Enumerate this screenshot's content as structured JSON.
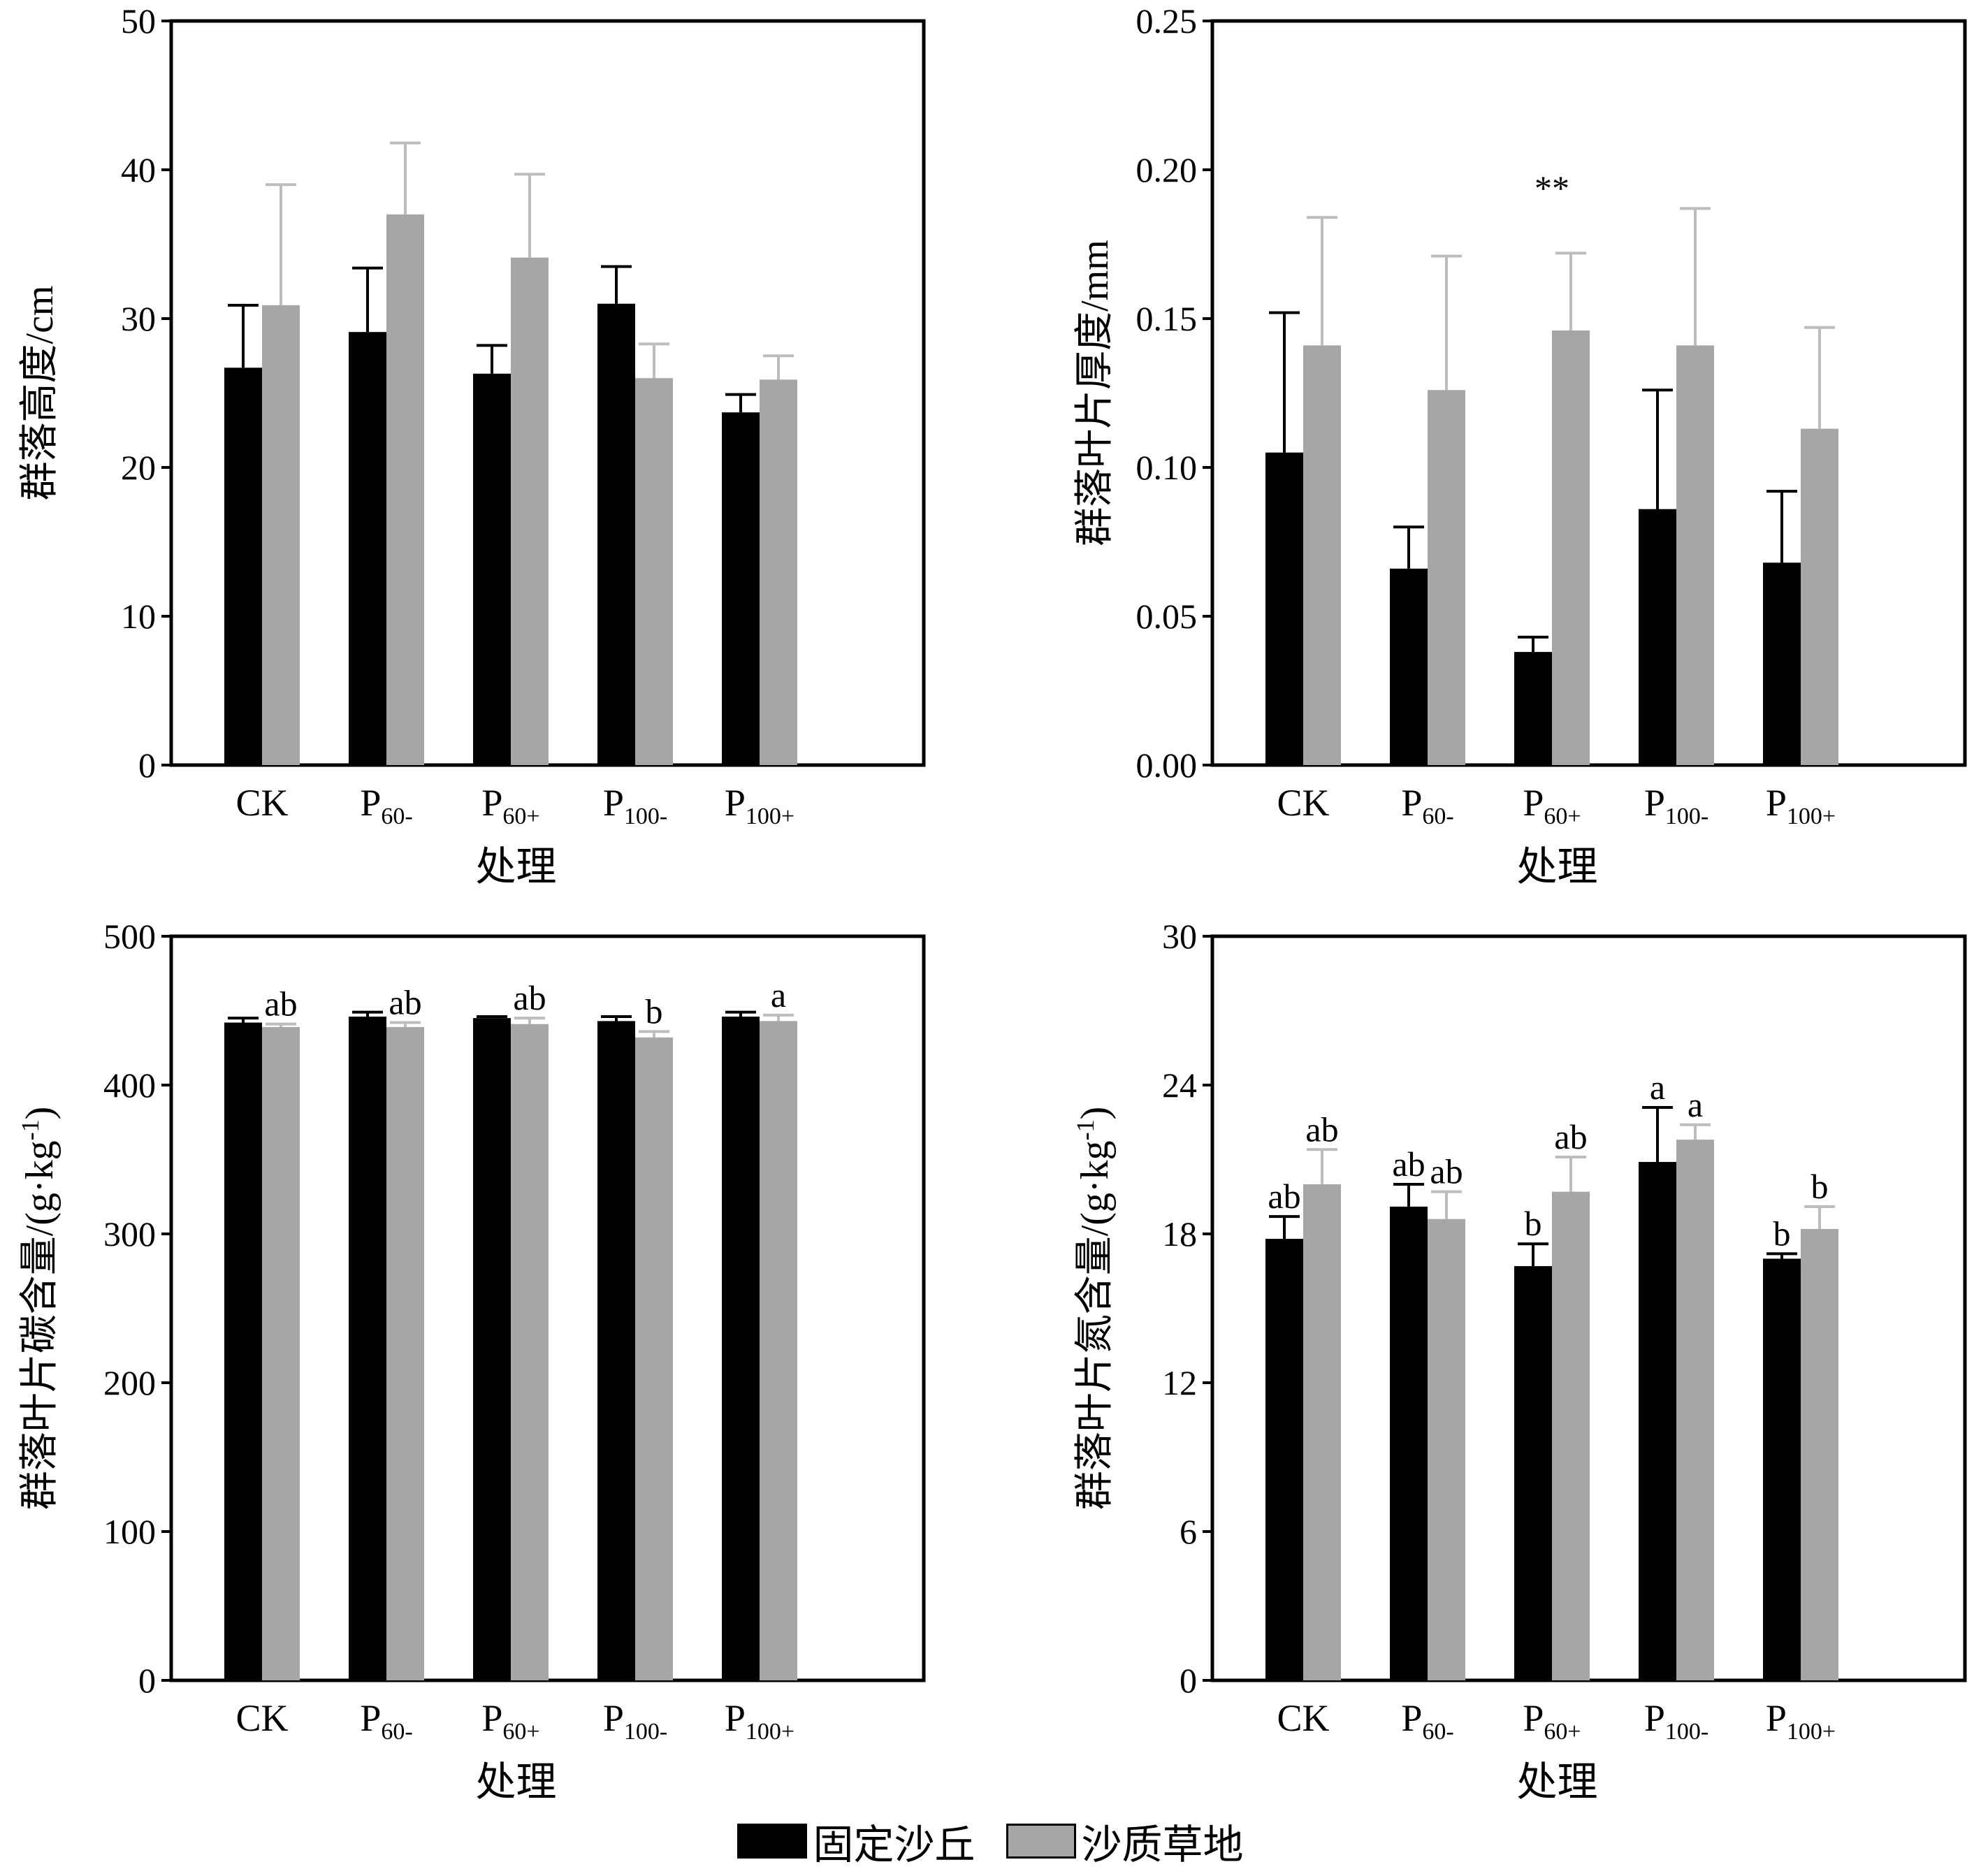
{
  "colors": {
    "fixed_dune": "#000000",
    "sandy_grassland": "#a6a6a6",
    "sandy_grassland_errorbar": "#bdbdbd"
  },
  "legend": {
    "fixed_dune": "固定沙丘",
    "sandy_grassland": "沙质草地"
  },
  "chart_data": [
    {
      "type": "bar",
      "categories": [
        {
          "base": "CK",
          "sub": ""
        },
        {
          "base": "P",
          "sub": "60-"
        },
        {
          "base": "P",
          "sub": "60+"
        },
        {
          "base": "P",
          "sub": "100-"
        },
        {
          "base": "P",
          "sub": "100+"
        }
      ],
      "xlabel": "处理",
      "ylabel": "群落高度/cm",
      "ylim": [
        0,
        50
      ],
      "yticks": [
        "0",
        "10",
        "20",
        "30",
        "40",
        "50"
      ],
      "series": [
        {
          "name": "固定沙丘",
          "values": [
            26.7,
            29.1,
            26.3,
            31.0,
            23.7
          ],
          "errors": [
            4.2,
            4.3,
            1.9,
            2.5,
            1.2
          ],
          "labels": [
            "",
            "",
            "",
            "",
            ""
          ]
        },
        {
          "name": "沙质草地",
          "values": [
            30.9,
            37.0,
            34.1,
            26.0,
            25.9
          ],
          "errors": [
            8.1,
            4.8,
            5.6,
            2.3,
            1.6
          ],
          "labels": [
            "",
            "",
            "",
            "",
            ""
          ]
        }
      ],
      "annotations": []
    },
    {
      "type": "bar",
      "categories": [
        {
          "base": "CK",
          "sub": ""
        },
        {
          "base": "P",
          "sub": "60-"
        },
        {
          "base": "P",
          "sub": "60+"
        },
        {
          "base": "P",
          "sub": "100-"
        },
        {
          "base": "P",
          "sub": "100+"
        }
      ],
      "xlabel": "处理",
      "ylabel": "群落叶片厚度/mm",
      "ylim": [
        0,
        0.25
      ],
      "yticks": [
        "0.00",
        "0.05",
        "0.10",
        "0.15",
        "0.20",
        "0.25"
      ],
      "series": [
        {
          "name": "固定沙丘",
          "values": [
            0.105,
            0.066,
            0.038,
            0.086,
            0.068
          ],
          "errors": [
            0.047,
            0.014,
            0.005,
            0.04,
            0.024
          ],
          "labels": [
            "",
            "",
            "",
            "",
            ""
          ]
        },
        {
          "name": "沙质草地",
          "values": [
            0.141,
            0.126,
            0.146,
            0.141,
            0.113
          ],
          "errors": [
            0.043,
            0.045,
            0.026,
            0.046,
            0.034
          ],
          "labels": [
            "",
            "",
            "",
            "",
            ""
          ]
        }
      ],
      "annotations": [
        {
          "text": "**",
          "category": 2,
          "y": 0.197
        }
      ]
    },
    {
      "type": "bar",
      "categories": [
        {
          "base": "CK",
          "sub": ""
        },
        {
          "base": "P",
          "sub": "60-"
        },
        {
          "base": "P",
          "sub": "60+"
        },
        {
          "base": "P",
          "sub": "100-"
        },
        {
          "base": "P",
          "sub": "100+"
        }
      ],
      "xlabel": "处理",
      "ylabel_main": "群落叶片碳含量/(g·kg",
      "ylabel_sup": "-1",
      "ylabel_end": ")",
      "ylim": [
        0,
        500
      ],
      "yticks": [
        "0",
        "100",
        "200",
        "300",
        "400",
        "500"
      ],
      "series": [
        {
          "name": "固定沙丘",
          "values": [
            442,
            446,
            445,
            443,
            446
          ],
          "errors": [
            3,
            3,
            1,
            3,
            3
          ],
          "labels": [
            "",
            "",
            "",
            "",
            ""
          ]
        },
        {
          "name": "沙质草地",
          "values": [
            439,
            439,
            441,
            432,
            443
          ],
          "errors": [
            2,
            3,
            4,
            4,
            4
          ],
          "labels": [
            "ab",
            "ab",
            "ab",
            "b",
            "a"
          ]
        }
      ],
      "annotations": []
    },
    {
      "type": "bar",
      "categories": [
        {
          "base": "CK",
          "sub": ""
        },
        {
          "base": "P",
          "sub": "60-"
        },
        {
          "base": "P",
          "sub": "60+"
        },
        {
          "base": "P",
          "sub": "100-"
        },
        {
          "base": "P",
          "sub": "100+"
        }
      ],
      "xlabel": "处理",
      "ylabel_main": "群落叶片氮含量/(g·kg",
      "ylabel_sup": "-1",
      "ylabel_end": ")",
      "ylim": [
        0,
        30
      ],
      "yticks": [
        "0",
        "6",
        "12",
        "18",
        "24",
        "30"
      ],
      "series": [
        {
          "name": "固定沙丘",
          "values": [
            17.8,
            19.1,
            16.7,
            20.9,
            17.0
          ],
          "errors": [
            0.9,
            0.9,
            0.9,
            2.2,
            0.2
          ],
          "labels": [
            "ab",
            "ab",
            "b",
            "a",
            "b"
          ]
        },
        {
          "name": "沙质草地",
          "values": [
            20.0,
            18.6,
            19.7,
            21.8,
            18.2
          ],
          "errors": [
            1.4,
            1.1,
            1.4,
            0.6,
            0.9
          ],
          "labels": [
            "ab",
            "ab",
            "ab",
            "a",
            "b"
          ]
        }
      ],
      "annotations": []
    }
  ]
}
